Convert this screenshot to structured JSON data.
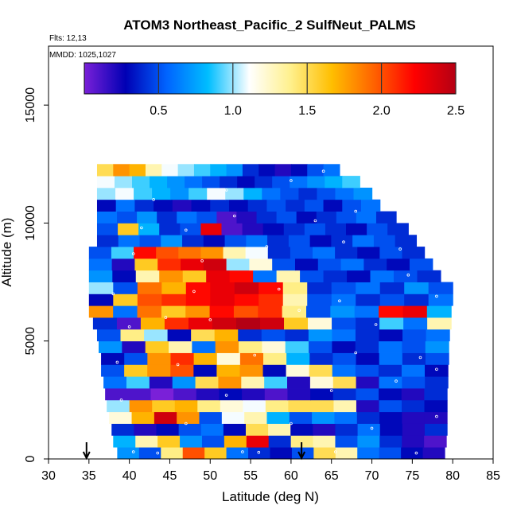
{
  "chart_data": {
    "type": "heatmap",
    "title": "ATOM3 Northeast_Pacific_2 SulfNeut_PALMS",
    "subtitle_flights": "Flts: 12,13",
    "subtitle_dates": "MMDD: 1025,1027",
    "xlabel": "Latitude (deg N)",
    "ylabel": "Altitude (m)",
    "xlim": [
      30,
      85
    ],
    "ylim": [
      0,
      17500
    ],
    "x_ticks": [
      "30",
      "35",
      "40",
      "45",
      "50",
      "55",
      "60",
      "65",
      "70",
      "75",
      "80",
      "85"
    ],
    "y_ticks": [
      "0",
      "5000",
      "10000",
      "15000"
    ],
    "colorbar": {
      "range": [
        0,
        2.5
      ],
      "ticks": [
        "0.5",
        "1.0",
        "1.5",
        "2.0",
        "2.5"
      ],
      "colors": [
        "#7a20d8",
        "#0000b4",
        "#0064ff",
        "#00beff",
        "#ffffff",
        "#fff08c",
        "#ffbe00",
        "#ff6400",
        "#ff0000",
        "#b40014"
      ],
      "placement": "top-inside"
    },
    "markers_latitude": [
      34.7,
      61.3
    ],
    "grid": false,
    "data_description": "Latitude–altitude curtain of SulfNeut ratio; rows every 500 m from 0 to 12500 m, latitude extent roughly 35–80 N.",
    "rows": [
      {
        "alt": 250,
        "lat_min": 38.5,
        "lat_max": 79.0,
        "values": [
          0.7,
          0.5,
          1.4,
          2.0,
          1.6,
          0.6,
          0.4,
          0.3,
          0.5,
          1.5,
          1.3,
          0.6,
          0.5,
          0.3,
          0.2
        ]
      },
      {
        "alt": 750,
        "lat_min": 38.0,
        "lat_max": 79.2,
        "values": [
          0.8,
          1.3,
          1.6,
          0.7,
          0.5,
          1.7,
          2.3,
          0.4,
          1.4,
          1.3,
          0.5,
          0.7,
          0.4,
          0.2,
          0.1
        ]
      },
      {
        "alt": 1250,
        "lat_min": 37.8,
        "lat_max": 79.3,
        "values": [
          0.4,
          0.2,
          0.3,
          0.5,
          0.6,
          0.3,
          1.5,
          1.3,
          0.3,
          0.2,
          0.4,
          0.6,
          0.3,
          0.2,
          0.4
        ]
      },
      {
        "alt": 1750,
        "lat_min": 37.5,
        "lat_max": 79.3,
        "values": [
          1.2,
          1.7,
          2.4,
          1.8,
          0.5,
          1.1,
          1.3,
          0.8,
          0.5,
          0.7,
          0.6,
          0.4,
          0.3,
          0.2,
          0.2
        ]
      },
      {
        "alt": 2250,
        "lat_min": 37.2,
        "lat_max": 79.3,
        "values": [
          1.0,
          1.8,
          1.6,
          1.7,
          1.4,
          1.2,
          1.1,
          1.4,
          1.5,
          1.5,
          1.3,
          0.2,
          0.5,
          0.4,
          0.3
        ]
      },
      {
        "alt": 2750,
        "lat_min": 37.0,
        "lat_max": 79.3,
        "values": [
          0.1,
          0.1,
          0.0,
          0.1,
          0.2,
          0.3,
          0.2,
          0.1,
          0.2,
          0.3,
          0.4,
          0.5,
          0.3,
          0.2,
          0.4
        ]
      },
      {
        "alt": 3250,
        "lat_min": 36.8,
        "lat_max": 79.4,
        "values": [
          0.6,
          0.9,
          0.2,
          0.7,
          1.5,
          1.8,
          1.3,
          0.9,
          0.2,
          1.2,
          1.5,
          0.2,
          0.6,
          0.5,
          0.4
        ]
      },
      {
        "alt": 3750,
        "lat_min": 36.5,
        "lat_max": 79.4,
        "values": [
          0.5,
          1.6,
          1.8,
          2.0,
          0.3,
          1.7,
          1.8,
          0.3,
          1.2,
          1.5,
          0.6,
          0.5,
          0.4,
          0.6,
          0.3
        ]
      },
      {
        "alt": 4250,
        "lat_min": 36.5,
        "lat_max": 79.5,
        "values": [
          0.3,
          0.5,
          1.8,
          2.1,
          1.7,
          1.2,
          1.9,
          1.4,
          0.8,
          0.4,
          0.5,
          0.3,
          0.6,
          0.4,
          0.5
        ]
      },
      {
        "alt": 4750,
        "lat_min": 36.2,
        "lat_max": 79.5,
        "values": [
          0.7,
          0.2,
          1.6,
          1.3,
          0.6,
          1.8,
          1.4,
          1.2,
          0.9,
          0.5,
          0.3,
          0.4,
          0.6,
          0.5,
          0.7
        ]
      },
      {
        "alt": 5250,
        "lat_min": 36.0,
        "lat_max": 79.6,
        "values": [
          0.5,
          1.4,
          1.0,
          0.3,
          1.5,
          1.7,
          0.4,
          0.5,
          0.4,
          0.7,
          0.6,
          0.4,
          0.3,
          0.5,
          0.6
        ]
      },
      {
        "alt": 5750,
        "lat_min": 35.5,
        "lat_max": 79.8,
        "values": [
          0.4,
          0.1,
          1.7,
          2.1,
          2.3,
          2.4,
          2.5,
          2.4,
          1.6,
          1.2,
          0.5,
          0.4,
          0.9,
          0.6,
          1.3
        ]
      },
      {
        "alt": 6250,
        "lat_min": 35.0,
        "lat_max": 79.8,
        "values": [
          1.8,
          0.6,
          1.9,
          1.6,
          1.8,
          2.2,
          2.0,
          2.1,
          1.4,
          0.5,
          0.7,
          0.6,
          2.2,
          2.3,
          0.8
        ]
      },
      {
        "alt": 6750,
        "lat_min": 35.0,
        "lat_max": 80.0,
        "values": [
          0.3,
          1.6,
          2.0,
          2.1,
          2.2,
          2.3,
          2.2,
          2.1,
          1.3,
          0.5,
          0.6,
          0.4,
          0.5,
          0.4,
          0.6
        ]
      },
      {
        "alt": 7250,
        "lat_min": 35.0,
        "lat_max": 80.0,
        "values": [
          1.0,
          0.5,
          1.9,
          1.7,
          2.2,
          2.3,
          2.4,
          2.2,
          1.4,
          0.4,
          0.5,
          0.6,
          0.4,
          0.7,
          0.5
        ]
      },
      {
        "alt": 7750,
        "lat_min": 35.0,
        "lat_max": 78.5,
        "values": [
          0.7,
          0.3,
          1.3,
          1.8,
          1.6,
          2.3,
          2.2,
          0.6,
          1.3,
          0.5,
          0.4,
          0.3,
          0.6,
          0.5,
          0.4
        ]
      },
      {
        "alt": 8250,
        "lat_min": 35.0,
        "lat_max": 77.5,
        "values": [
          0.6,
          0.2,
          1.6,
          2.1,
          2.3,
          2.4,
          1.0,
          1.2,
          0.5,
          0.3,
          0.5,
          0.6,
          0.4,
          0.3,
          0.5
        ]
      },
      {
        "alt": 8750,
        "lat_min": 35.0,
        "lat_max": 76.5,
        "values": [
          0.5,
          0.9,
          2.2,
          2.0,
          1.9,
          1.8,
          1.3,
          1.1,
          0.4,
          0.5,
          0.6,
          0.4,
          0.3,
          0.5,
          0.4
        ]
      },
      {
        "alt": 9250,
        "lat_min": 36.0,
        "lat_max": 75.5,
        "values": [
          0.4,
          0.6,
          0.5,
          0.7,
          0.4,
          0.3,
          0.5,
          0.6,
          0.4,
          0.5,
          0.3,
          0.4,
          0.6,
          0.5,
          0.4
        ]
      },
      {
        "alt": 9750,
        "lat_min": 36.0,
        "lat_max": 74.5,
        "values": [
          0.5,
          1.6,
          0.8,
          0.4,
          0.5,
          2.3,
          0.1,
          0.2,
          0.3,
          0.4,
          0.5,
          0.4,
          0.3,
          0.5,
          0.4
        ]
      },
      {
        "alt": 10250,
        "lat_min": 36.0,
        "lat_max": 73.0,
        "values": [
          0.6,
          0.5,
          0.7,
          0.4,
          0.6,
          0.5,
          0.1,
          0.2,
          0.4,
          0.5,
          0.3,
          0.4,
          0.5,
          0.6,
          0.4
        ]
      },
      {
        "alt": 10750,
        "lat_min": 36.0,
        "lat_max": 71.0,
        "values": [
          0.3,
          0.6,
          0.4,
          0.3,
          0.2,
          0.3,
          0.4,
          0.3,
          0.4,
          0.5,
          0.4,
          0.5,
          0.3,
          0.5,
          0.6
        ]
      },
      {
        "alt": 11250,
        "lat_min": 36.0,
        "lat_max": 70.0,
        "values": [
          1.0,
          1.1,
          0.9,
          0.8,
          0.7,
          0.9,
          1.1,
          1.0,
          0.8,
          0.6,
          0.5,
          0.4,
          0.5,
          0.6,
          0.7
        ]
      },
      {
        "alt": 11750,
        "lat_min": 36.0,
        "lat_max": 68.5,
        "values": [
          1.1,
          1.0,
          0.9,
          0.8,
          0.7,
          0.6,
          0.5,
          0.4,
          0.3,
          0.4,
          0.5,
          0.6,
          0.7,
          0.8,
          0.9
        ]
      },
      {
        "alt": 12250,
        "lat_min": 36.0,
        "lat_max": 66.0,
        "values": [
          1.5,
          1.8,
          1.7,
          1.3,
          1.1,
          1.0,
          0.9,
          0.8,
          0.7,
          0.4,
          0.3,
          0.2,
          0.3,
          0.5,
          0.6
        ]
      }
    ],
    "sample_points": [
      [
        40.5,
        300
      ],
      [
        43.5,
        250
      ],
      [
        54,
        300
      ],
      [
        56,
        280
      ],
      [
        65.5,
        300
      ],
      [
        75.5,
        250
      ],
      [
        37.5,
        1200
      ],
      [
        47,
        1500
      ],
      [
        60,
        1500
      ],
      [
        70,
        1300
      ],
      [
        78,
        1800
      ],
      [
        39,
        2500
      ],
      [
        52,
        2700
      ],
      [
        65,
        2900
      ],
      [
        73,
        3300
      ],
      [
        78,
        3800
      ],
      [
        38.5,
        4100
      ],
      [
        46,
        4000
      ],
      [
        55.5,
        4400
      ],
      [
        68,
        4500
      ],
      [
        76,
        4300
      ],
      [
        40,
        5600
      ],
      [
        44.5,
        6000
      ],
      [
        50,
        5900
      ],
      [
        61,
        6300
      ],
      [
        70.5,
        5700
      ],
      [
        78,
        6900
      ],
      [
        38,
        7000
      ],
      [
        48,
        7100
      ],
      [
        58.5,
        7200
      ],
      [
        66,
        6700
      ],
      [
        74.5,
        7800
      ],
      [
        40.5,
        8700
      ],
      [
        49,
        8400
      ],
      [
        57,
        9000
      ],
      [
        66.5,
        9200
      ],
      [
        73.5,
        8900
      ],
      [
        41.5,
        9800
      ],
      [
        47,
        9700
      ],
      [
        53,
        10300
      ],
      [
        63,
        10100
      ],
      [
        68,
        10500
      ],
      [
        43,
        11000
      ],
      [
        52,
        11400
      ],
      [
        60,
        11800
      ],
      [
        64,
        12200
      ]
    ]
  }
}
